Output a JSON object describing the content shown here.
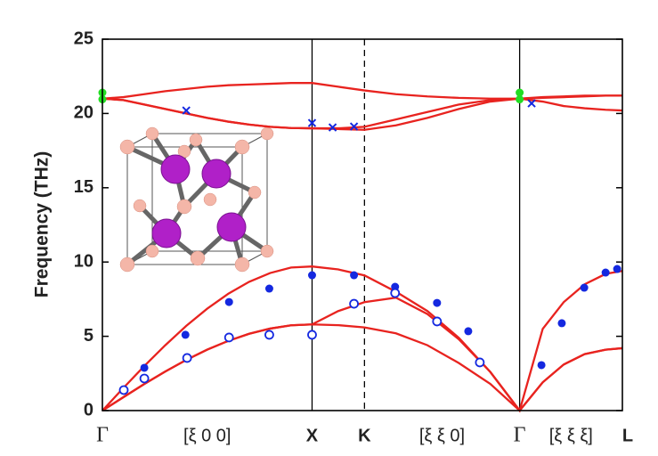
{
  "chart_data": {
    "type": "line",
    "ylabel": "Frequency (THz)",
    "xlim": [
      0,
      2.48
    ],
    "ylim": [
      0,
      25
    ],
    "yticks": [
      0,
      5,
      10,
      15,
      20,
      25
    ],
    "xticks": [
      {
        "value": 0,
        "label": "Γ"
      },
      {
        "value": 1,
        "label": "X"
      },
      {
        "value": 1.25,
        "label": "K"
      },
      {
        "value": 1.99,
        "label": "Γ"
      },
      {
        "value": 2.48,
        "label": "L"
      }
    ],
    "segment_labels": [
      "[ξ 0 0]",
      "[ξ ξ 0]",
      "[ξ ξ ξ]"
    ],
    "x": [
      0,
      0.1,
      0.2,
      0.3,
      0.4,
      0.5,
      0.6,
      0.7,
      0.8,
      0.9,
      1.0,
      1.125,
      1.25,
      1.4,
      1.55,
      1.7,
      1.85,
      1.99,
      2.1,
      2.2,
      2.3,
      2.4,
      2.48
    ],
    "series": [
      {
        "color": "#e8231f",
        "values": [
          0,
          1.52,
          3.0,
          4.4,
          5.7,
          6.86,
          7.86,
          8.67,
          9.26,
          9.63,
          9.7,
          9.5,
          9.1,
          8.0,
          6.7,
          4.9,
          2.6,
          0,
          5.5,
          7.3,
          8.5,
          9.2,
          9.4
        ]
      },
      {
        "color": "#e8231f",
        "values": [
          0,
          0.9,
          1.79,
          2.63,
          3.41,
          4.1,
          4.69,
          5.17,
          5.52,
          5.74,
          5.8,
          6.7,
          7.3,
          7.6,
          6.5,
          4.8,
          2.6,
          0,
          1.9,
          3.1,
          3.8,
          4.1,
          4.2
        ]
      },
      {
        "color": "#e8231f",
        "values": [
          0,
          0.9,
          1.79,
          2.63,
          3.41,
          4.1,
          4.69,
          5.17,
          5.52,
          5.74,
          5.8,
          5.75,
          5.6,
          5.2,
          4.4,
          3.2,
          1.8,
          0,
          1.9,
          3.1,
          3.8,
          4.1,
          4.2
        ]
      },
      {
        "color": "#e8231f",
        "values": [
          21.0,
          21.1,
          21.3,
          21.5,
          21.65,
          21.8,
          21.9,
          21.95,
          22.0,
          22.05,
          22.05,
          21.8,
          21.55,
          21.3,
          21.15,
          21.05,
          21.0,
          21.0,
          21.1,
          21.15,
          21.2,
          21.2,
          21.2
        ]
      },
      {
        "color": "#e8231f",
        "values": [
          21.0,
          20.9,
          20.6,
          20.3,
          20.0,
          19.7,
          19.45,
          19.25,
          19.1,
          19.02,
          19.0,
          19.0,
          19.1,
          19.6,
          20.1,
          20.6,
          20.9,
          21.0,
          21.05,
          21.1,
          21.15,
          21.2,
          21.2
        ]
      },
      {
        "color": "#e8231f",
        "values": [
          21.0,
          20.9,
          20.6,
          20.3,
          20.0,
          19.7,
          19.45,
          19.25,
          19.1,
          19.02,
          19.0,
          18.95,
          18.9,
          19.2,
          19.7,
          20.3,
          20.8,
          21.0,
          20.8,
          20.5,
          20.35,
          20.25,
          20.2
        ]
      }
    ],
    "points": [
      {
        "marker": "filled",
        "color": "#1428e0",
        "x": [
          0.2,
          0.396,
          0.604,
          0.796,
          1.0,
          1.2,
          1.396,
          1.596,
          1.745,
          2.094,
          2.191,
          2.298,
          2.4,
          2.455
        ],
        "values": [
          2.88,
          5.1,
          7.31,
          8.21,
          9.11,
          9.11,
          8.33,
          7.25,
          5.34,
          3.06,
          5.88,
          8.27,
          9.29,
          9.53
        ]
      },
      {
        "marker": "open",
        "color": "#1428e0",
        "x": [
          0.102,
          0.2,
          0.404,
          0.604,
          0.796,
          1.0,
          1.2,
          1.396,
          1.596,
          1.8
        ],
        "values": [
          1.38,
          2.16,
          3.54,
          4.92,
          5.1,
          5.1,
          7.19,
          7.91,
          6.0,
          3.24
        ]
      },
      {
        "marker": "cross",
        "color": "#1428e0",
        "x": [
          0.4,
          1.0,
          1.098,
          1.2,
          2.047
        ],
        "values": [
          20.2,
          19.36,
          19.06,
          19.12,
          20.68
        ]
      },
      {
        "marker": "filled",
        "color": "#22dd22",
        "x": [
          0,
          0,
          1.99,
          1.99
        ],
        "values": [
          21.4,
          20.95,
          21.4,
          20.95
        ]
      }
    ]
  }
}
